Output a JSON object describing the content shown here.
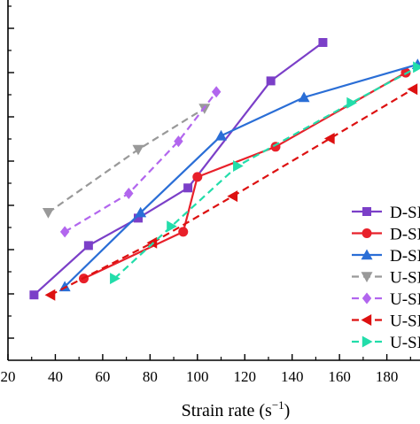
{
  "chart_data": {
    "type": "line",
    "title": "",
    "xlabel": "Strain rate (s",
    "xlabel_superscript": "−1",
    "xlabel_close": ")",
    "ylabel": "",
    "xlim": [
      20,
      194
    ],
    "ylim": [
      0,
      100
    ],
    "x_ticks": [
      20,
      40,
      60,
      80,
      100,
      120,
      140,
      160,
      180
    ],
    "grid": false,
    "legend_position": "right",
    "series": [
      {
        "name": "D-SI",
        "color": "#7b3fc8",
        "marker": "square",
        "dash": "solid",
        "x": [
          31,
          54,
          75,
          96,
          131,
          153
        ],
        "y": [
          8,
          26,
          36,
          47,
          86,
          100
        ]
      },
      {
        "name": "D-SI",
        "color": "#e8202a",
        "marker": "circle",
        "dash": "solid",
        "x": [
          52,
          94,
          100,
          133,
          188
        ],
        "y": [
          14,
          31,
          51,
          62,
          89
        ]
      },
      {
        "name": "D-SI",
        "color": "#2a6ed6",
        "marker": "triangle-up",
        "dash": "solid",
        "x": [
          44,
          76,
          110,
          145,
          193
        ],
        "y": [
          11,
          38,
          66,
          80,
          92
        ]
      },
      {
        "name": "U-SI",
        "color": "#999999",
        "marker": "triangle-down",
        "dash": "dashed",
        "x": [
          37,
          75,
          103
        ],
        "y": [
          38,
          61,
          76
        ]
      },
      {
        "name": "U-SI",
        "color": "#b266ee",
        "marker": "diamond",
        "dash": "dashed",
        "x": [
          44,
          71,
          92,
          108
        ],
        "y": [
          31,
          45,
          64,
          82
        ]
      },
      {
        "name": "U-SI",
        "color": "#dd1111",
        "marker": "triangle-left",
        "dash": "dashed",
        "x": [
          38,
          81,
          115,
          156,
          191
        ],
        "y": [
          8,
          27,
          44,
          65,
          83
        ]
      },
      {
        "name": "U-SI",
        "color": "#22ddaa",
        "marker": "triangle-right",
        "dash": "dashed",
        "x": [
          65,
          89,
          117,
          165,
          193
        ],
        "y": [
          14,
          33,
          55,
          78,
          91
        ]
      }
    ]
  }
}
